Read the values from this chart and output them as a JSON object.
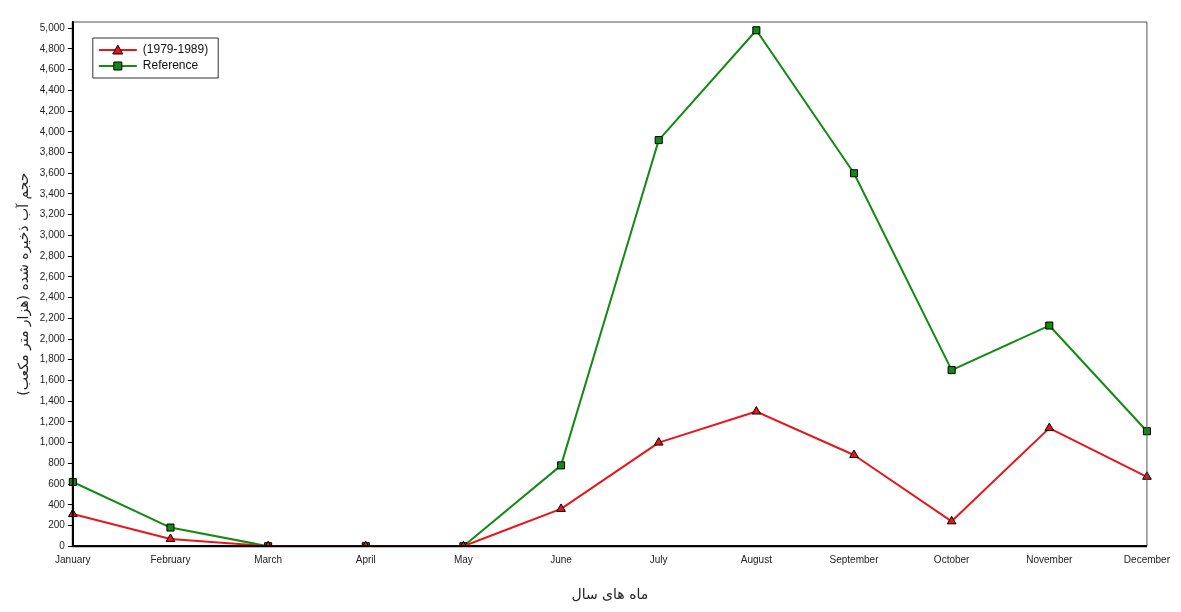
{
  "chart_data": {
    "type": "line",
    "xlabel": "ماه های سال",
    "ylabel": "حجم آب ذخیره شده (هزار متر مکعب)",
    "categories": [
      "January",
      "February",
      "March",
      "April",
      "May",
      "June",
      "July",
      "August",
      "September",
      "October",
      "November",
      "December"
    ],
    "series": [
      {
        "name": "(1979-1989)",
        "color": "#e8161b",
        "marker": "triangle",
        "values": [
          310,
          70,
          0,
          0,
          0,
          360,
          1000,
          1300,
          880,
          240,
          1140,
          670
        ]
      },
      {
        "name": "Reference",
        "color": "#138a13",
        "marker": "square",
        "values": [
          620,
          180,
          0,
          0,
          0,
          780,
          3920,
          4980,
          3600,
          1700,
          2130,
          1110
        ]
      }
    ],
    "ylim": [
      0,
      5060
    ],
    "yticks": [
      0,
      200,
      400,
      600,
      800,
      {
        "value": 1000,
        "label": "1,000"
      },
      {
        "value": 1200,
        "label": "1,200"
      },
      {
        "value": 1400,
        "label": "1,400"
      },
      {
        "value": 1600,
        "label": "1,600"
      },
      {
        "value": 1800,
        "label": "1,800"
      },
      {
        "value": 2000,
        "label": "2,000"
      },
      {
        "value": 2200,
        "label": "2,200"
      },
      {
        "value": 2400,
        "label": "2,400"
      },
      {
        "value": 2600,
        "label": "2,600"
      },
      {
        "value": 2800,
        "label": "2,800"
      },
      {
        "value": 3000,
        "label": "3,000"
      },
      {
        "value": 3200,
        "label": "3,200"
      },
      {
        "value": 3400,
        "label": "3,400"
      },
      {
        "value": 3600,
        "label": "3,600"
      },
      {
        "value": 3800,
        "label": "3,800"
      },
      {
        "value": 4000,
        "label": "4,000"
      },
      {
        "value": 4200,
        "label": "4,200"
      },
      {
        "value": 4400,
        "label": "4,400"
      },
      {
        "value": 4600,
        "label": "4,600"
      },
      {
        "value": 4800,
        "label": "4,800"
      },
      {
        "value": 5000,
        "label": "5,000"
      }
    ],
    "grid": false,
    "legend": "top left",
    "line_style": "solid"
  }
}
